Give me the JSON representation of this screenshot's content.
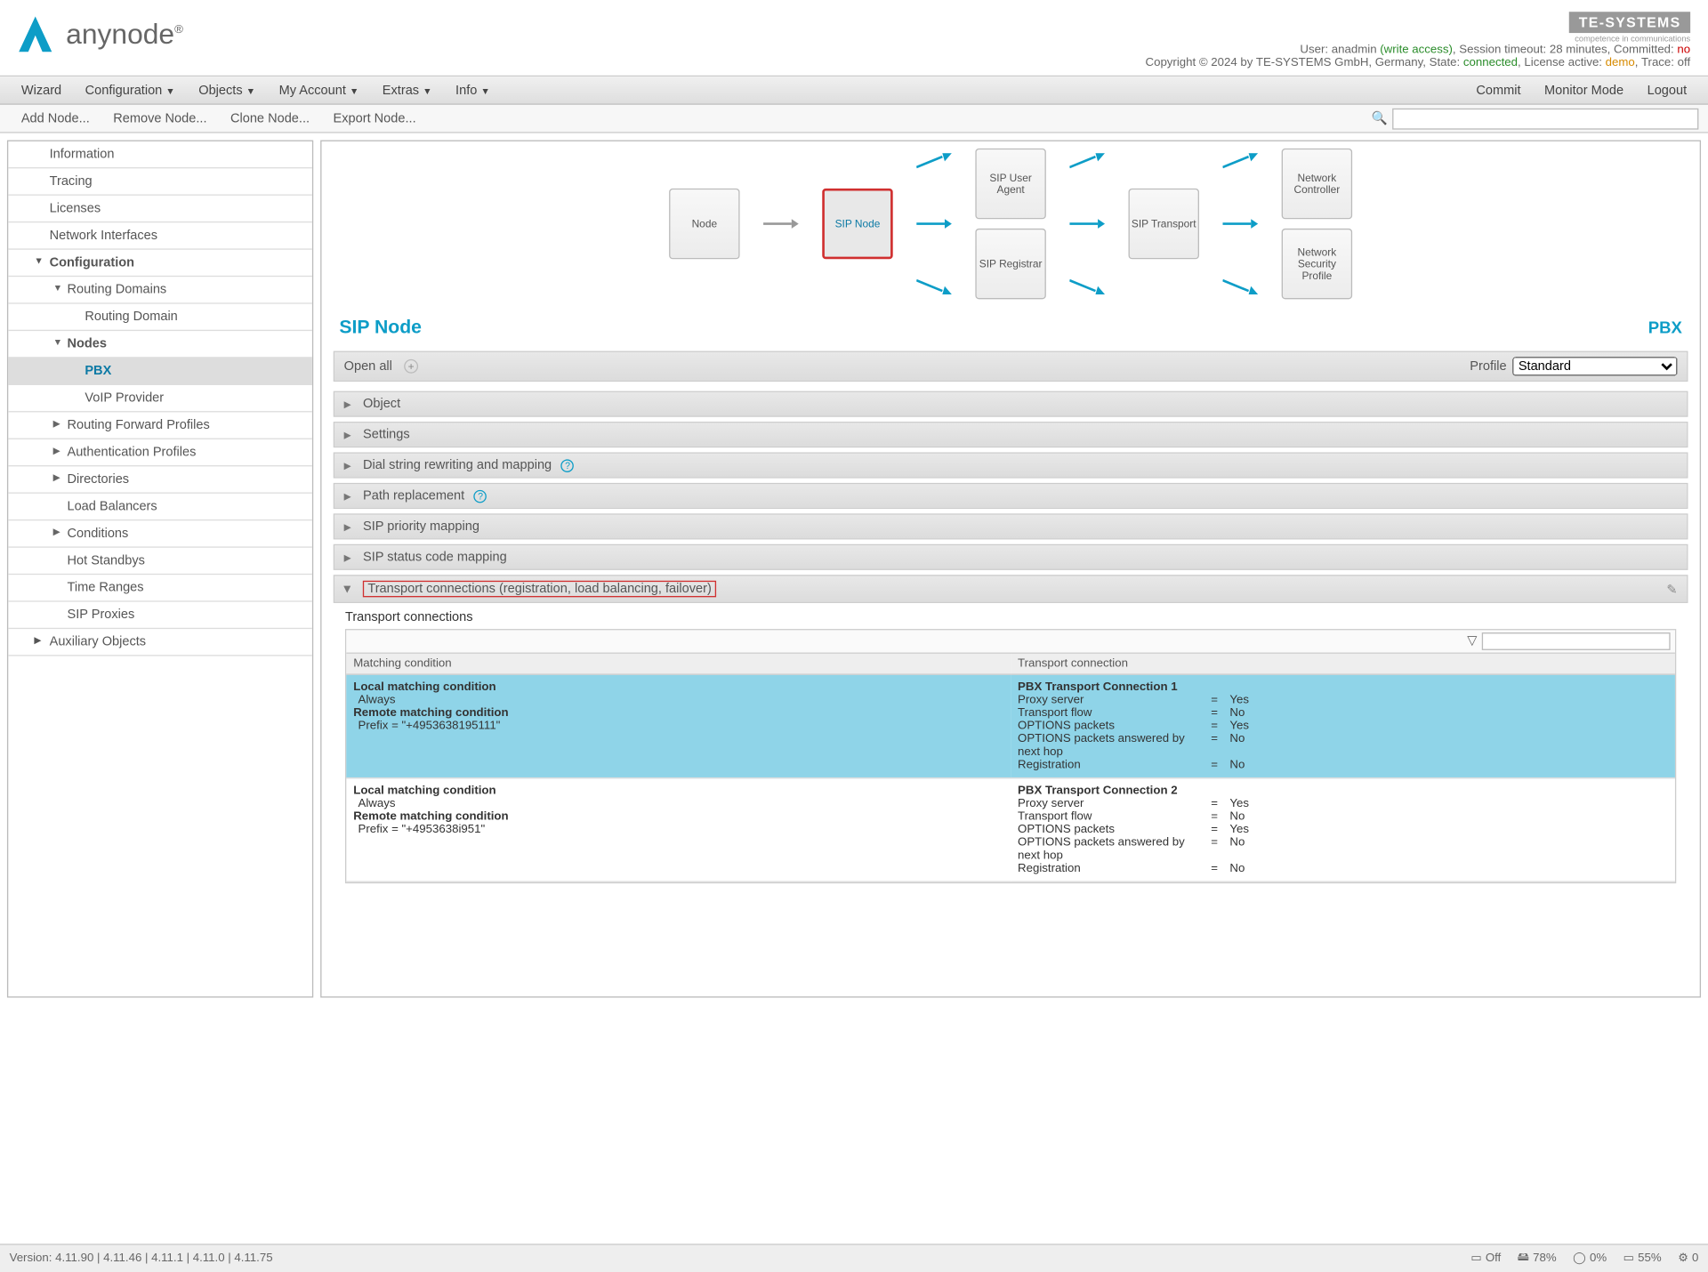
{
  "logo": {
    "name": "anynode"
  },
  "header": {
    "te_logo": "TE-SYSTEMS",
    "te_sub": "competence in communications",
    "user_label": "User:",
    "user": "anadmin",
    "access": "(write access)",
    "timeout_label": "Session timeout:",
    "timeout": "28 minutes",
    "committed_label": "Committed:",
    "committed": "no",
    "copyright": "Copyright © 2024 by TE-SYSTEMS GmbH, Germany,",
    "state_label": "State:",
    "state": "connected",
    "license_label": "License active:",
    "license": "demo",
    "trace_label": "Trace:",
    "trace": "off"
  },
  "menu": {
    "wizard": "Wizard",
    "configuration": "Configuration",
    "objects": "Objects",
    "my_account": "My Account",
    "extras": "Extras",
    "info": "Info",
    "commit": "Commit",
    "monitor": "Monitor Mode",
    "logout": "Logout"
  },
  "toolbar": {
    "add": "Add Node...",
    "remove": "Remove Node...",
    "clone": "Clone Node...",
    "export": "Export Node..."
  },
  "sidebar": {
    "information": "Information",
    "tracing": "Tracing",
    "licenses": "Licenses",
    "network_interfaces": "Network Interfaces",
    "configuration": "Configuration",
    "routing_domains": "Routing Domains",
    "routing_domain": "Routing Domain",
    "nodes": "Nodes",
    "pbx": "PBX",
    "voip": "VoIP Provider",
    "routing_forward": "Routing Forward Profiles",
    "auth": "Authentication Profiles",
    "directories": "Directories",
    "load_balancers": "Load Balancers",
    "conditions": "Conditions",
    "hot_standbys": "Hot Standbys",
    "time_ranges": "Time Ranges",
    "sip_proxies": "SIP Proxies",
    "aux": "Auxiliary Objects"
  },
  "diagram": {
    "node": "Node",
    "sip_node": "SIP Node",
    "sip_ua": "SIP User Agent",
    "sip_reg": "SIP Registrar",
    "sip_trans": "SIP Transport",
    "net_ctrl": "Network Controller",
    "net_sec": "Network Security Profile"
  },
  "title": {
    "left": "SIP Node",
    "right": "PBX"
  },
  "openall": {
    "label": "Open all",
    "profile_label": "Profile",
    "profile_value": "Standard"
  },
  "sections": {
    "object": "Object",
    "settings": "Settings",
    "dial": "Dial string rewriting and mapping",
    "path": "Path replacement",
    "sip_prio": "SIP priority mapping",
    "sip_status": "SIP status code mapping",
    "transport": "Transport connections (registration, load balancing, failover)",
    "sub_title": "Transport connections"
  },
  "table": {
    "col1": "Matching condition",
    "col2": "Transport connection",
    "rows": [
      {
        "local_label": "Local matching condition",
        "local_val": "Always",
        "remote_label": "Remote matching condition",
        "remote_val": "Prefix = \"+4953638195111\"",
        "tc_title": "PBX Transport Connection 1",
        "props": [
          [
            "Proxy server",
            "=",
            "Yes"
          ],
          [
            "Transport flow",
            "=",
            "No"
          ],
          [
            "OPTIONS packets",
            "=",
            "Yes"
          ],
          [
            "OPTIONS packets answered by next hop",
            "=",
            "No"
          ],
          [
            "Registration",
            "=",
            "No"
          ]
        ]
      },
      {
        "local_label": "Local matching condition",
        "local_val": "Always",
        "remote_label": "Remote matching condition",
        "remote_val": "Prefix = \"+4953638i951\"",
        "tc_title": "PBX Transport Connection 2",
        "props": [
          [
            "Proxy server",
            "=",
            "Yes"
          ],
          [
            "Transport flow",
            "=",
            "No"
          ],
          [
            "OPTIONS packets",
            "=",
            "Yes"
          ],
          [
            "OPTIONS packets answered by next hop",
            "=",
            "No"
          ],
          [
            "Registration",
            "=",
            "No"
          ]
        ]
      }
    ]
  },
  "footer": {
    "version": "Version: 4.11.90 | 4.11.46 | 4.11.1 | 4.11.0 | 4.11.75",
    "off": "Off",
    "p1": "78%",
    "p2": "0%",
    "p3": "55%",
    "p4": "0"
  },
  "colors": {
    "accent": "#0d9dc7",
    "highlight_row": "#8fd4e8",
    "red_box": "#d03030"
  }
}
